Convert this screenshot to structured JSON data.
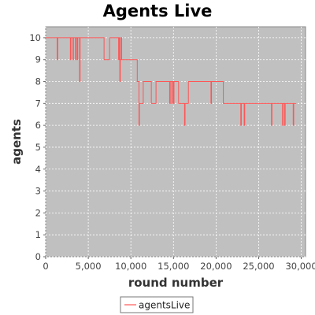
{
  "chart_data": {
    "type": "line",
    "title": "Agents Live",
    "xlabel": "round number",
    "ylabel": "agents",
    "xlim": [
      0,
      30500
    ],
    "ylim": [
      0,
      10.5
    ],
    "x_ticks": [
      0,
      5000,
      10000,
      15000,
      20000,
      25000,
      30000
    ],
    "x_tick_labels": [
      "0",
      "5,000",
      "10,000",
      "15,000",
      "20,000",
      "25,000",
      "30,000"
    ],
    "y_ticks": [
      0,
      1,
      2,
      3,
      4,
      5,
      6,
      7,
      8,
      9,
      10
    ],
    "y_tick_labels": [
      "0",
      "1",
      "2",
      "3",
      "4",
      "5",
      "6",
      "7",
      "8",
      "9",
      "10"
    ],
    "grid": true,
    "legend_position": "bottom",
    "plot_background": "#c0c0c0",
    "grid_color": "#ffffff",
    "series": [
      {
        "name": "agentsLive",
        "color": "#ff5555",
        "x": [
          0,
          1350,
          1350,
          1420,
          1420,
          2900,
          2900,
          2960,
          2960,
          3200,
          3200,
          3260,
          3260,
          3500,
          3500,
          3560,
          3560,
          3700,
          3700,
          3760,
          3760,
          3980,
          3980,
          4040,
          4040,
          6850,
          6850,
          7500,
          7500,
          8560,
          8560,
          8620,
          8620,
          8700,
          8700,
          8760,
          8760,
          8860,
          8860,
          8920,
          8920,
          10750,
          10750,
          10950,
          10950,
          11000,
          11000,
          11450,
          11450,
          12400,
          12400,
          12950,
          12950,
          14550,
          14550,
          14620,
          14620,
          14800,
          14800,
          14860,
          14860,
          15000,
          15000,
          15060,
          15060,
          15600,
          15600,
          16300,
          16300,
          16360,
          16360,
          16750,
          16750,
          19400,
          19400,
          19460,
          19460,
          20850,
          20850,
          22900,
          22900,
          22960,
          22960,
          23300,
          23300,
          23360,
          23360,
          26500,
          26500,
          26560,
          26560,
          27800,
          27800,
          27860,
          27860,
          28050,
          28050,
          28110,
          28110,
          29050,
          29050,
          29110,
          29110,
          29400
        ],
        "y": [
          10,
          10,
          9,
          9,
          10,
          10,
          9,
          9,
          10,
          10,
          9,
          9,
          10,
          10,
          9,
          9,
          10,
          10,
          9,
          9,
          10,
          10,
          8,
          8,
          10,
          10,
          9,
          9,
          10,
          10,
          9,
          9,
          10,
          10,
          8,
          8,
          9,
          9,
          10,
          10,
          9,
          9,
          8,
          8,
          6,
          6,
          7,
          7,
          8,
          8,
          7,
          7,
          8,
          8,
          7,
          7,
          8,
          8,
          7,
          7,
          8,
          8,
          7,
          7,
          8,
          8,
          7,
          7,
          6,
          6,
          7,
          7,
          8,
          8,
          7,
          7,
          8,
          8,
          7,
          7,
          6,
          6,
          7,
          7,
          6,
          6,
          7,
          7,
          6,
          6,
          7,
          7,
          6,
          6,
          7,
          7,
          6,
          6,
          7,
          7,
          6,
          6,
          7,
          7
        ]
      }
    ]
  }
}
